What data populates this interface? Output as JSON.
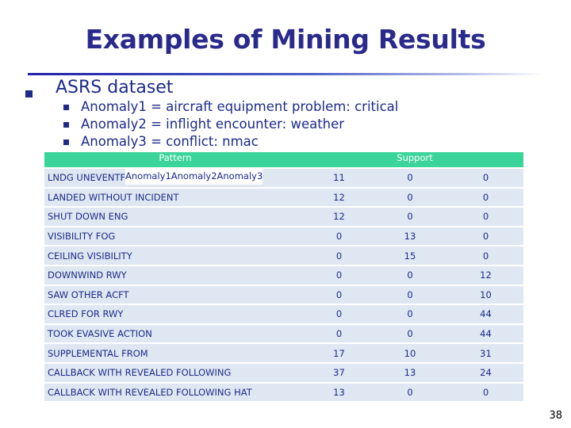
{
  "slide": {
    "title": "Examples of Mining Results",
    "bullet": "ASRS dataset",
    "sub_bullets": [
      "Anomaly1 = aircraft equipment problem: critical",
      "Anomaly2 = inflight encounter: weather",
      "Anomaly3 = conflict: nmac"
    ],
    "page_number": "38"
  },
  "table": {
    "header_pattern": "Pattern",
    "header_support": "Support",
    "columns": [
      "Anomaly1",
      "Anomaly2",
      "Anomaly3"
    ],
    "rows": [
      {
        "pattern": "LNDG UNEVENTFUL",
        "a1": "11",
        "a2": "0",
        "a3": "0"
      },
      {
        "pattern": "LANDED WITHOUT INCIDENT",
        "a1": "12",
        "a2": "0",
        "a3": "0"
      },
      {
        "pattern": "SHUT DOWN ENG",
        "a1": "12",
        "a2": "0",
        "a3": "0"
      },
      {
        "pattern": "VISIBILITY FOG",
        "a1": "0",
        "a2": "13",
        "a3": "0"
      },
      {
        "pattern": "CEILING VISIBILITY",
        "a1": "0",
        "a2": "15",
        "a3": "0"
      },
      {
        "pattern": "DOWNWIND RWY",
        "a1": "0",
        "a2": "0",
        "a3": "12"
      },
      {
        "pattern": "SAW OTHER ACFT",
        "a1": "0",
        "a2": "0",
        "a3": "10"
      },
      {
        "pattern": "CLRED FOR RWY",
        "a1": "0",
        "a2": "0",
        "a3": "44"
      },
      {
        "pattern": "TOOK EVASIVE ACTION",
        "a1": "0",
        "a2": "0",
        "a3": "44"
      },
      {
        "pattern": "SUPPLEMENTAL FROM",
        "a1": "17",
        "a2": "10",
        "a3": "31"
      },
      {
        "pattern": "CALLBACK WITH REVEALED FOLLOWING",
        "a1": "37",
        "a2": "13",
        "a3": "24"
      },
      {
        "pattern": "CALLBACK WITH REVEALED FOLLOWING HAT",
        "a1": "13",
        "a2": "0",
        "a3": "0"
      }
    ]
  },
  "colors": {
    "title": "#2a2a8c",
    "text": "#1c2a8a",
    "header_bg": "#3bd49a",
    "row_bg": "#dfe8f2"
  }
}
